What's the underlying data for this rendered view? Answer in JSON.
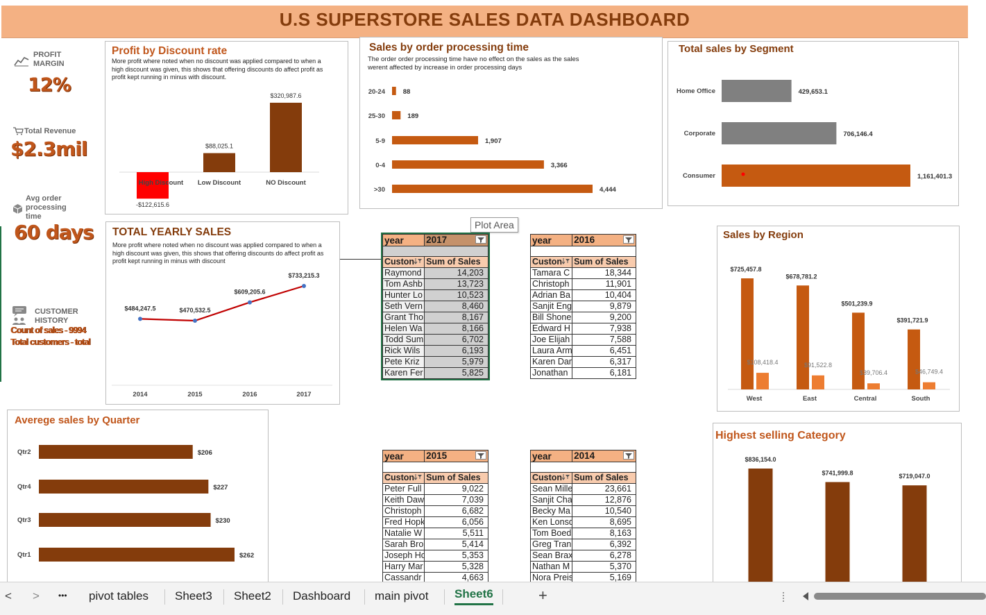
{
  "title": "U.S SUPERSTORE SALES DATA DASHBOARD",
  "kpis": {
    "profit_margin_label": "PROFIT MARGIN",
    "profit_margin_value": "12%",
    "total_revenue_label": "Total Revenue",
    "total_revenue_value": "$2.3mil",
    "avg_processing_label": "Avg order processing time",
    "avg_processing_value": "60 days",
    "customer_history_label": "CUSTOMER HISTORY",
    "count_of_sales": "Count of sales - 9994",
    "total_customers": "Total customers - total"
  },
  "discount_chart": {
    "title": "Profit by Discount rate",
    "note": "More profit where noted when no discount was applied compared to when a high discount was given, this shows that offering discounts do affect profit as profit kept running in minus with discount."
  },
  "processing_chart": {
    "title": "Sales by order processing time",
    "note": "The order order processing time have no effect on the sales as the sales werent affected by increase in order processing days"
  },
  "segment_chart": {
    "title": "Total sales by Segment"
  },
  "yearly_chart": {
    "title": "TOTAL YEARLY SALES",
    "note": "More profit where noted when no discount was applied compared to when a high discount was given, this shows that offering discounts do affect profit as profit kept running in minus with discount"
  },
  "region_chart": {
    "title": "Sales by Region"
  },
  "quarter_chart": {
    "title": "Averege sales by Quarter"
  },
  "category_chart": {
    "title": "Highest selling Category"
  },
  "tooltip": "Plot Area",
  "chart_data": [
    {
      "id": "discount",
      "type": "bar",
      "categories": [
        "High Discount",
        "Low Discount",
        "NO Discount"
      ],
      "values": [
        -122615.6,
        88025.1,
        320987.6
      ],
      "labels": [
        "-$122,615.6",
        "$88,025.1",
        "$320,987.6"
      ],
      "colors": [
        "#ff0000",
        "#843c0c",
        "#843c0c"
      ]
    },
    {
      "id": "processing",
      "type": "bar",
      "orientation": "horizontal",
      "categories": [
        "20-24",
        "25-30",
        "5-9",
        "0-4",
        ">30"
      ],
      "values": [
        88,
        189,
        1907,
        3366,
        4444
      ],
      "labels": [
        "88",
        "189",
        "1,907",
        "3,366",
        "4,444"
      ],
      "color": "#c55a11"
    },
    {
      "id": "segment",
      "type": "bar",
      "orientation": "horizontal",
      "categories": [
        "Home Office",
        "Corporate",
        "Consumer"
      ],
      "values": [
        429653.1,
        706146.4,
        1161401.3
      ],
      "labels": [
        "429,653.1",
        "706,146.4",
        "1,161,401.3"
      ],
      "colors": [
        "#808080",
        "#808080",
        "#c55a11"
      ]
    },
    {
      "id": "yearly",
      "type": "line",
      "x": [
        "2014",
        "2015",
        "2016",
        "2017"
      ],
      "values": [
        484247.5,
        470532.5,
        609205.6,
        733215.3
      ],
      "labels": [
        "$484,247.5",
        "$470,532.5",
        "$609,205.6",
        "$733,215.3"
      ],
      "color": "#c00000"
    },
    {
      "id": "region",
      "type": "bar",
      "categories": [
        "West",
        "East",
        "Central",
        "South"
      ],
      "series": [
        {
          "values": [
            725457.8,
            678781.2,
            501239.9,
            391721.9
          ],
          "labels": [
            "$725,457.8",
            "$678,781.2",
            "$501,239.9",
            "$391,721.9"
          ],
          "color": "#c55a11"
        },
        {
          "values": [
            108418.4,
            91522.8,
            39706.4,
            46749.4
          ],
          "labels": [
            "$108,418.4",
            "$91,522.8",
            "$39,706.4",
            "$46,749.4"
          ],
          "color": "#ed7d31"
        }
      ]
    },
    {
      "id": "quarter",
      "type": "bar",
      "orientation": "horizontal",
      "categories": [
        "Qtr2",
        "Qtr4",
        "Qtr3",
        "Qtr1"
      ],
      "values": [
        206,
        227,
        230,
        262
      ],
      "labels": [
        "$206",
        "$227",
        "$230",
        "$262"
      ],
      "color": "#843c0c"
    },
    {
      "id": "category",
      "type": "bar",
      "values": [
        836154.0,
        741999.8,
        719047.0
      ],
      "labels": [
        "$836,154.0",
        "$741,999.8",
        "$719,047.0"
      ],
      "color": "#843c0c"
    }
  ],
  "pivots": [
    {
      "id": "p2017",
      "year_label": "year",
      "year": "2017",
      "col1": "Custon",
      "col2": "Sum of Sales",
      "rows": [
        [
          "Raymond",
          "14,203"
        ],
        [
          "Tom Ashb",
          "13,723"
        ],
        [
          "Hunter Lo",
          "10,523"
        ],
        [
          "Seth Vern",
          "8,460"
        ],
        [
          "Grant Tho",
          "8,167"
        ],
        [
          "Helen Wa",
          "8,166"
        ],
        [
          "Todd Sum",
          "6,702"
        ],
        [
          "Rick Wils",
          "6,193"
        ],
        [
          "Pete Kriz",
          "5,979"
        ],
        [
          "Karen Fer",
          "5,825"
        ]
      ]
    },
    {
      "id": "p2016",
      "year_label": "year",
      "year": "2016",
      "col1": "Custon",
      "col2": "Sum of Sales",
      "rows": [
        [
          "Tamara C",
          "18,344"
        ],
        [
          "Christoph",
          "11,901"
        ],
        [
          "Adrian Ba",
          "10,404"
        ],
        [
          "Sanjit Eng",
          "9,879"
        ],
        [
          "Bill Shone",
          "9,200"
        ],
        [
          "Edward H",
          "7,938"
        ],
        [
          "Joe Elijah",
          "7,588"
        ],
        [
          "Laura Arm",
          "6,451"
        ],
        [
          "Karen Dan",
          "6,317"
        ],
        [
          "Jonathan",
          "6,181"
        ]
      ]
    },
    {
      "id": "p2015",
      "year_label": "year",
      "year": "2015",
      "col1": "Custon",
      "col2": "Sum of Sales",
      "rows": [
        [
          "Peter Full",
          "9,022"
        ],
        [
          "Keith Daw",
          "7,039"
        ],
        [
          "Christoph",
          "6,682"
        ],
        [
          "Fred Hopk",
          "6,056"
        ],
        [
          "Natalie W",
          "5,511"
        ],
        [
          "Sarah Bro",
          "5,414"
        ],
        [
          "Joseph Ho",
          "5,353"
        ],
        [
          "Harry Mar",
          "5,328"
        ],
        [
          "Cassandr",
          "4,663"
        ]
      ]
    },
    {
      "id": "p2014",
      "year_label": "year",
      "year": "2014",
      "col1": "Custon",
      "col2": "Sum of Sales",
      "rows": [
        [
          "Sean Mille",
          "23,661"
        ],
        [
          "Sanjit Cha",
          "12,876"
        ],
        [
          "Becky Ma",
          "10,540"
        ],
        [
          "Ken Lonsd",
          "8,695"
        ],
        [
          "Tom Boed",
          "8,163"
        ],
        [
          "Greg Tran",
          "6,392"
        ],
        [
          "Sean Brax",
          "6,278"
        ],
        [
          "Nathan M",
          "5,370"
        ],
        [
          "Nora Preis",
          "5,169"
        ]
      ]
    }
  ],
  "tabs": [
    "pivot tables",
    "Sheet3",
    "Sheet2",
    "Dashboard",
    "main pivot",
    "Sheet6"
  ],
  "active_tab": "Sheet6",
  "nav": {
    "prev": "<",
    "next": ">",
    "more": "•••",
    "add": "+"
  }
}
